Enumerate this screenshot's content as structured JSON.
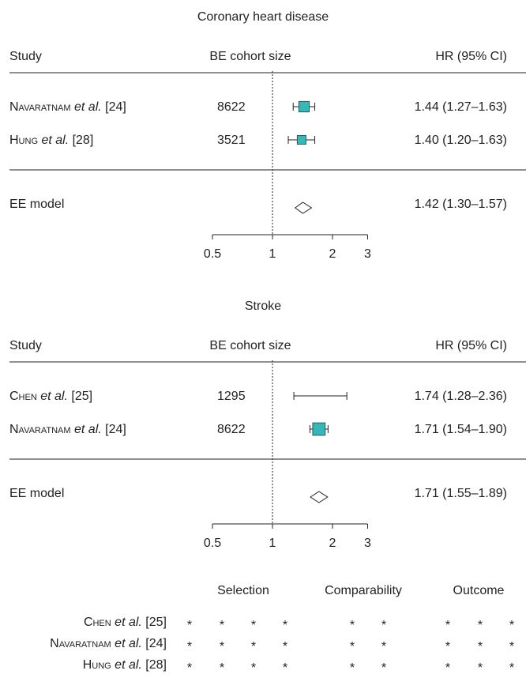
{
  "colors": {
    "box": "#3bb6b6",
    "box_stroke": "#1e5f5f",
    "line": "#222222"
  },
  "chart_data": [
    {
      "type": "forest",
      "title": "Coronary heart disease",
      "headers": {
        "study": "Study",
        "size": "BE cohort size",
        "hr": "HR (95% CI)"
      },
      "scale": "log",
      "xlim": [
        0.5,
        3
      ],
      "xticks": [
        0.5,
        1,
        2,
        3
      ],
      "xtick_labels": [
        "0.5",
        "1",
        "2",
        "3"
      ],
      "reference_line": 1,
      "studies": [
        {
          "author": "Navaratnam",
          "suffix": " et al.",
          "ref": " [24]",
          "size": "8622",
          "hr": 1.44,
          "lo": 1.27,
          "hi": 1.63,
          "weight": 0.62,
          "label": "1.44 (1.27–1.63)"
        },
        {
          "author": "Hung",
          "suffix": " et al.",
          "ref": " [28]",
          "size": "3521",
          "hr": 1.4,
          "lo": 1.2,
          "hi": 1.63,
          "weight": 0.38,
          "label": "1.40 (1.20–1.63)"
        }
      ],
      "model": {
        "name": "EE model",
        "hr": 1.42,
        "lo": 1.3,
        "hi": 1.57,
        "label": "1.42 (1.30–1.57)"
      }
    },
    {
      "type": "forest",
      "title": "Stroke",
      "headers": {
        "study": "Study",
        "size": "BE cohort size",
        "hr": "HR (95% CI)"
      },
      "scale": "log",
      "xlim": [
        0.5,
        3
      ],
      "xticks": [
        0.5,
        1,
        2,
        3
      ],
      "xtick_labels": [
        "0.5",
        "1",
        "2",
        "3"
      ],
      "reference_line": 1,
      "studies": [
        {
          "author": "Chen",
          "suffix": " et al.",
          "ref": " [25]",
          "size": "1295",
          "hr": 1.74,
          "lo": 1.28,
          "hi": 2.36,
          "weight": 0.04,
          "label": "1.74 (1.28–2.36)"
        },
        {
          "author": "Navaratnam",
          "suffix": " et al.",
          "ref": " [24]",
          "size": "8622",
          "hr": 1.71,
          "lo": 1.54,
          "hi": 1.9,
          "weight": 0.96,
          "label": "1.71 (1.54–1.90)"
        }
      ],
      "model": {
        "name": "EE model",
        "hr": 1.71,
        "lo": 1.55,
        "hi": 1.89,
        "label": "1.71 (1.55–1.89)"
      }
    },
    {
      "type": "table",
      "columns": [
        {
          "name": "Selection",
          "stars": 4
        },
        {
          "name": "Comparability",
          "stars": 2
        },
        {
          "name": "Outcome",
          "stars": 3
        }
      ],
      "star": "*",
      "rows": [
        {
          "author": "Chen",
          "suffix": " et al.",
          "ref": " [25]",
          "stars": [
            1,
            1,
            1,
            1,
            1,
            1,
            1,
            1,
            1
          ]
        },
        {
          "author": "Navaratnam",
          "suffix": " et al.",
          "ref": " [24]",
          "stars": [
            1,
            1,
            1,
            1,
            1,
            1,
            1,
            1,
            1
          ]
        },
        {
          "author": "Hung",
          "suffix": " et al.",
          "ref": " [28]",
          "stars": [
            1,
            1,
            1,
            1,
            1,
            1,
            1,
            1,
            1
          ]
        }
      ]
    }
  ]
}
